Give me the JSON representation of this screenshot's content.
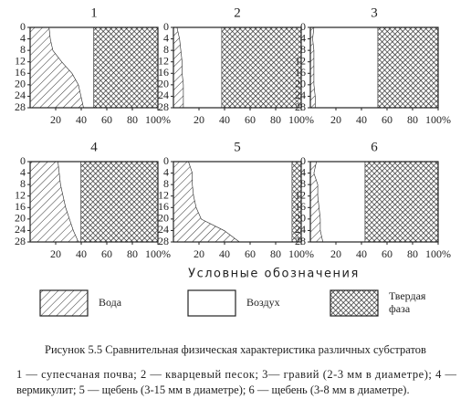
{
  "chart_data": [
    {
      "type": "stacked-area-horizontal",
      "title": "1",
      "depths": [
        0,
        4,
        8,
        12,
        16,
        20,
        24,
        28
      ],
      "ylim": [
        0,
        28
      ],
      "y_inverted": true,
      "yticks": [
        0,
        4,
        8,
        12,
        16,
        20,
        24,
        28
      ],
      "xlim": [
        0,
        100
      ],
      "xticks": [
        20,
        40,
        60,
        80,
        {
          "value": 100,
          "label": "100%"
        }
      ],
      "series": [
        {
          "name": "Вода",
          "pattern": "hatch",
          "values": [
            15,
            16,
            18,
            25,
            33,
            38,
            40,
            42
          ]
        },
        {
          "name": "Воздух",
          "pattern": "blank",
          "values": [
            35,
            34,
            32,
            25,
            17,
            12,
            10,
            8
          ]
        },
        {
          "name": "Твердая фаза",
          "pattern": "crosshatch",
          "values": [
            50,
            50,
            50,
            50,
            50,
            50,
            50,
            50
          ]
        }
      ]
    },
    {
      "type": "stacked-area-horizontal",
      "title": "2",
      "depths": [
        0,
        4,
        8,
        12,
        16,
        20,
        24,
        28
      ],
      "ylim": [
        0,
        28
      ],
      "y_inverted": true,
      "yticks": [
        0,
        4,
        8,
        12,
        16,
        20,
        24,
        28
      ],
      "xlim": [
        0,
        100
      ],
      "xticks": [
        20,
        40,
        60,
        80,
        {
          "value": 100,
          "label": "100%"
        }
      ],
      "series": [
        {
          "name": "Вода",
          "pattern": "hatch",
          "values": [
            3,
            5,
            6,
            7,
            7,
            8,
            8,
            8
          ]
        },
        {
          "name": "Воздух",
          "pattern": "blank",
          "values": [
            35,
            33,
            32,
            31,
            31,
            30,
            30,
            30
          ]
        },
        {
          "name": "Твердая фаза",
          "pattern": "crosshatch",
          "values": [
            62,
            62,
            62,
            62,
            62,
            62,
            62,
            62
          ]
        }
      ]
    },
    {
      "type": "stacked-area-horizontal",
      "title": "3",
      "depths": [
        0,
        4,
        8,
        12,
        16,
        20,
        24,
        28
      ],
      "ylim": [
        0,
        28
      ],
      "y_inverted": true,
      "yticks": [
        0,
        4,
        8,
        12,
        16,
        20,
        24,
        28
      ],
      "xlim": [
        0,
        100
      ],
      "xticks": [
        20,
        40,
        60,
        80,
        {
          "value": 100,
          "label": "100%"
        }
      ],
      "series": [
        {
          "name": "Вода",
          "pattern": "hatch",
          "values": [
            3,
            2,
            3,
            3,
            3,
            3,
            4,
            4
          ]
        },
        {
          "name": "Воздух",
          "pattern": "blank",
          "values": [
            50,
            51,
            50,
            50,
            50,
            50,
            49,
            49
          ]
        },
        {
          "name": "Твердая фаза",
          "pattern": "crosshatch",
          "values": [
            47,
            47,
            47,
            47,
            47,
            47,
            47,
            47
          ]
        }
      ]
    },
    {
      "type": "stacked-area-horizontal",
      "title": "4",
      "depths": [
        0,
        4,
        8,
        12,
        16,
        20,
        24,
        28
      ],
      "ylim": [
        0,
        28
      ],
      "y_inverted": true,
      "yticks": [
        0,
        4,
        8,
        12,
        16,
        20,
        24,
        28
      ],
      "xlim": [
        0,
        100
      ],
      "xticks": [
        20,
        40,
        60,
        80,
        {
          "value": 100,
          "label": "100%"
        }
      ],
      "series": [
        {
          "name": "Вода",
          "pattern": "hatch",
          "values": [
            22,
            23,
            24,
            26,
            28,
            31,
            34,
            38
          ]
        },
        {
          "name": "Воздух",
          "pattern": "blank",
          "values": [
            18,
            17,
            16,
            14,
            12,
            9,
            6,
            2
          ]
        },
        {
          "name": "Твердая фаза",
          "pattern": "crosshatch",
          "values": [
            60,
            60,
            60,
            60,
            60,
            60,
            60,
            60
          ]
        }
      ]
    },
    {
      "type": "stacked-area-horizontal",
      "title": "5",
      "depths": [
        0,
        4,
        8,
        12,
        16,
        20,
        24,
        28
      ],
      "ylim": [
        0,
        28
      ],
      "y_inverted": true,
      "yticks": [
        0,
        4,
        8,
        12,
        16,
        20,
        24,
        28
      ],
      "xlim": [
        0,
        100
      ],
      "xticks": [
        20,
        40,
        60,
        80,
        {
          "value": 100,
          "label": "100%"
        }
      ],
      "series": [
        {
          "name": "Вода",
          "pattern": "hatch",
          "values": [
            12,
            15,
            15,
            16,
            18,
            22,
            40,
            52
          ]
        },
        {
          "name": "Воздух",
          "pattern": "blank",
          "values": [
            81,
            78,
            78,
            77,
            75,
            71,
            53,
            41
          ]
        },
        {
          "name": "Твердая фаза",
          "pattern": "crosshatch",
          "values": [
            7,
            7,
            7,
            7,
            7,
            7,
            7,
            7
          ]
        }
      ]
    },
    {
      "type": "stacked-area-horizontal",
      "title": "6",
      "depths": [
        0,
        4,
        8,
        12,
        16,
        20,
        24,
        28
      ],
      "ylim": [
        0,
        28
      ],
      "y_inverted": true,
      "yticks": [
        0,
        4,
        8,
        12,
        16,
        20,
        24,
        28
      ],
      "xlim": [
        0,
        100
      ],
      "xticks": [
        20,
        40,
        60,
        80,
        {
          "value": 100,
          "label": "100%"
        }
      ],
      "series": [
        {
          "name": "Вода",
          "pattern": "hatch",
          "values": [
            5,
            3,
            6,
            6,
            7,
            8,
            8,
            10
          ]
        },
        {
          "name": "Воздух",
          "pattern": "blank",
          "values": [
            38,
            40,
            37,
            37,
            36,
            35,
            35,
            33
          ]
        },
        {
          "name": "Твердая фаза",
          "pattern": "crosshatch",
          "values": [
            57,
            57,
            57,
            57,
            57,
            57,
            57,
            57
          ]
        }
      ]
    }
  ],
  "legend_title": "Условные обозначения",
  "caption": {
    "title": "Рисунок 5.5 Сравнительная физическая характеристика различных субстратов",
    "lines": [
      "1 — супесчаная почва; 2 — кварцевый песок; 3— гравий (2-3 мм в диаметре); 4 —",
      "вермикулит; 5 — щебень (3-15 мм в диаметре); 6 — щебень (3-8 мм в диаметре)."
    ]
  }
}
